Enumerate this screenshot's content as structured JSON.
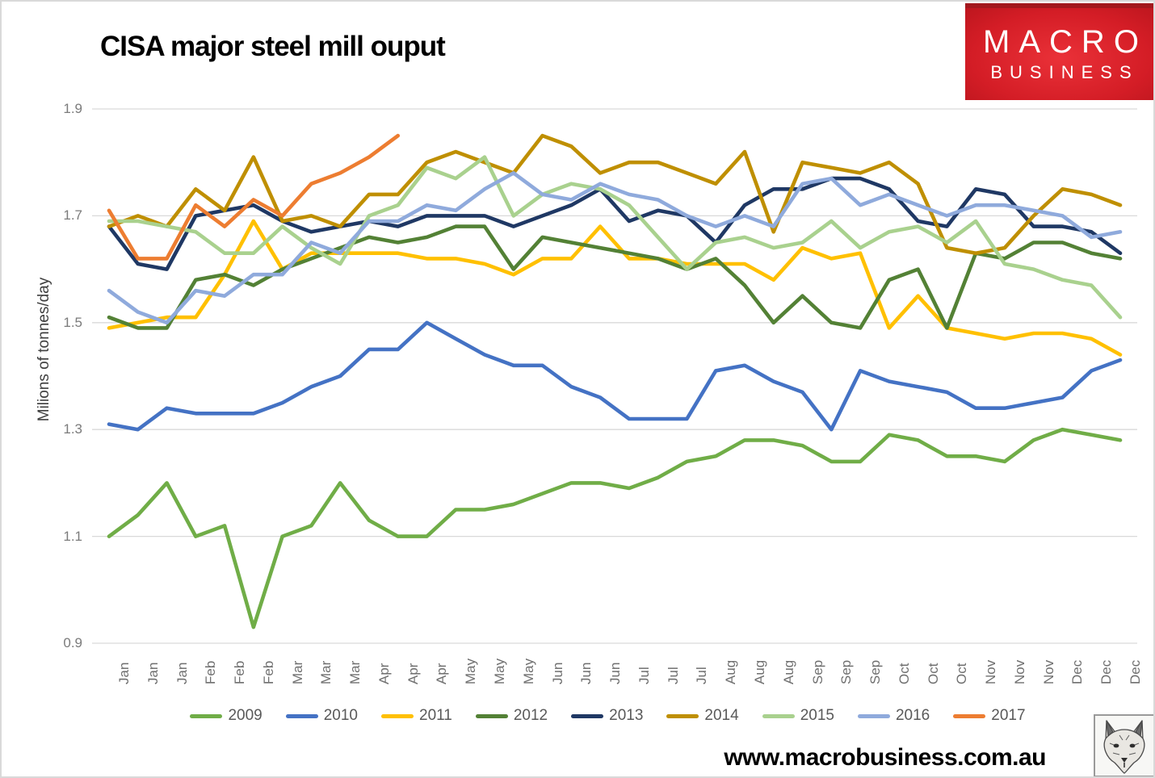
{
  "header": {
    "title": "CISA major steel mill ouput"
  },
  "logo": {
    "line1": "MACRO",
    "line2": "BUSINESS",
    "bg_color": "#d41d26"
  },
  "footer": {
    "url": "www.macrobusiness.com.au",
    "logo_icon": "fox-sketch-icon"
  },
  "chart_data": {
    "type": "line",
    "title": "CISA major steel mill ouput",
    "xlabel": "",
    "ylabel": "Milions of tonnes/day",
    "ylim": [
      0.9,
      1.9
    ],
    "yticks": [
      1.9,
      1.7,
      1.5,
      1.3,
      1.1,
      0.9
    ],
    "grid": true,
    "gridline_color": "#d9d9d9",
    "legend_position": "bottom",
    "tick_color": "#7b7b7b",
    "categories": [
      "Jan",
      "Jan",
      "Jan",
      "Feb",
      "Feb",
      "Feb",
      "Mar",
      "Mar",
      "Mar",
      "Apr",
      "Apr",
      "Apr",
      "May",
      "May",
      "May",
      "Jun",
      "Jun",
      "Jun",
      "Jul",
      "Jul",
      "Jul",
      "Aug",
      "Aug",
      "Aug",
      "Sep",
      "Sep",
      "Sep",
      "Oct",
      "Oct",
      "Oct",
      "Nov",
      "Nov",
      "Nov",
      "Dec",
      "Dec",
      "Dec"
    ],
    "series": [
      {
        "name": "2009",
        "color": "#70AD47",
        "values": [
          1.1,
          1.14,
          1.2,
          1.1,
          1.12,
          0.93,
          1.1,
          1.12,
          1.2,
          1.13,
          1.1,
          1.1,
          1.15,
          1.15,
          1.16,
          1.18,
          1.2,
          1.2,
          1.19,
          1.21,
          1.24,
          1.25,
          1.28,
          1.28,
          1.27,
          1.24,
          1.24,
          1.29,
          1.28,
          1.25,
          1.25,
          1.24,
          1.28,
          1.3,
          1.29,
          1.28
        ]
      },
      {
        "name": "2010",
        "color": "#4472C4",
        "values": [
          1.31,
          1.3,
          1.34,
          1.33,
          1.33,
          1.33,
          1.35,
          1.38,
          1.4,
          1.45,
          1.45,
          1.5,
          1.47,
          1.44,
          1.42,
          1.42,
          1.38,
          1.36,
          1.32,
          1.32,
          1.32,
          1.41,
          1.42,
          1.39,
          1.37,
          1.3,
          1.41,
          1.39,
          1.38,
          1.37,
          1.34,
          1.34,
          1.35,
          1.36,
          1.41,
          1.43
        ]
      },
      {
        "name": "2011",
        "color": "#FFC000",
        "values": [
          1.49,
          1.5,
          1.51,
          1.51,
          1.59,
          1.69,
          1.6,
          1.63,
          1.63,
          1.63,
          1.63,
          1.62,
          1.62,
          1.61,
          1.59,
          1.62,
          1.62,
          1.68,
          1.62,
          1.62,
          1.61,
          1.61,
          1.61,
          1.58,
          1.64,
          1.62,
          1.63,
          1.49,
          1.55,
          1.49,
          1.48,
          1.47,
          1.48,
          1.48,
          1.47,
          1.44
        ]
      },
      {
        "name": "2012",
        "color": "#538135",
        "values": [
          1.51,
          1.49,
          1.49,
          1.58,
          1.59,
          1.57,
          1.6,
          1.62,
          1.64,
          1.66,
          1.65,
          1.66,
          1.68,
          1.68,
          1.6,
          1.66,
          1.65,
          1.64,
          1.63,
          1.62,
          1.6,
          1.62,
          1.57,
          1.5,
          1.55,
          1.5,
          1.49,
          1.58,
          1.6,
          1.49,
          1.63,
          1.62,
          1.65,
          1.65,
          1.63,
          1.62
        ]
      },
      {
        "name": "2013",
        "color": "#1F3864",
        "values": [
          1.68,
          1.61,
          1.6,
          1.7,
          1.71,
          1.72,
          1.69,
          1.67,
          1.68,
          1.69,
          1.68,
          1.7,
          1.7,
          1.7,
          1.68,
          1.7,
          1.72,
          1.75,
          1.69,
          1.71,
          1.7,
          1.65,
          1.72,
          1.75,
          1.75,
          1.77,
          1.77,
          1.75,
          1.69,
          1.68,
          1.75,
          1.74,
          1.68,
          1.68,
          1.67,
          1.63
        ]
      },
      {
        "name": "2014",
        "color": "#BF8F00",
        "values": [
          1.68,
          1.7,
          1.68,
          1.75,
          1.71,
          1.81,
          1.69,
          1.7,
          1.68,
          1.74,
          1.74,
          1.8,
          1.82,
          1.8,
          1.78,
          1.85,
          1.83,
          1.78,
          1.8,
          1.8,
          1.78,
          1.76,
          1.82,
          1.67,
          1.8,
          1.79,
          1.78,
          1.8,
          1.76,
          1.64,
          1.63,
          1.64,
          1.7,
          1.75,
          1.74,
          1.72
        ]
      },
      {
        "name": "2015",
        "color": "#A9D18E",
        "values": [
          1.69,
          1.69,
          1.68,
          1.67,
          1.63,
          1.63,
          1.68,
          1.64,
          1.61,
          1.7,
          1.72,
          1.79,
          1.77,
          1.81,
          1.7,
          1.74,
          1.76,
          1.75,
          1.72,
          1.66,
          1.6,
          1.65,
          1.66,
          1.64,
          1.65,
          1.69,
          1.64,
          1.67,
          1.68,
          1.65,
          1.69,
          1.61,
          1.6,
          1.58,
          1.57,
          1.51
        ]
      },
      {
        "name": "2016",
        "color": "#8FAADC",
        "values": [
          1.56,
          1.52,
          1.5,
          1.56,
          1.55,
          1.59,
          1.59,
          1.65,
          1.63,
          1.69,
          1.69,
          1.72,
          1.71,
          1.75,
          1.78,
          1.74,
          1.73,
          1.76,
          1.74,
          1.73,
          1.7,
          1.68,
          1.7,
          1.68,
          1.76,
          1.77,
          1.72,
          1.74,
          1.72,
          1.7,
          1.72,
          1.72,
          1.71,
          1.7,
          1.66,
          1.67
        ]
      },
      {
        "name": "2017",
        "color": "#ED7D31",
        "values": [
          1.71,
          1.62,
          1.62,
          1.72,
          1.68,
          1.73,
          1.7,
          1.76,
          1.78,
          1.81,
          1.85
        ]
      }
    ]
  }
}
